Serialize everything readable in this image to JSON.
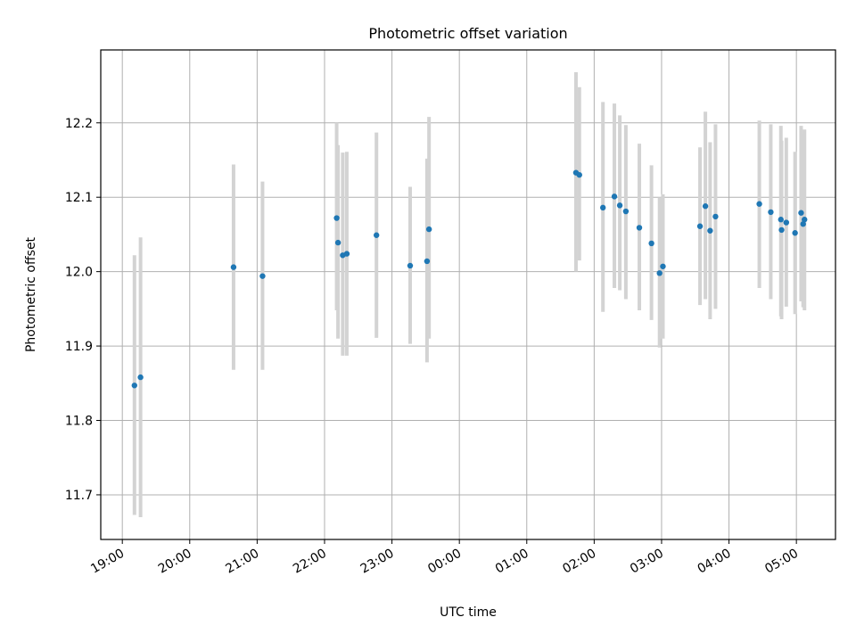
{
  "chart_data": {
    "type": "scatter",
    "title": "Photometric offset variation",
    "xlabel": "UTC time",
    "ylabel": "Photometric offset",
    "x_unit": "hours",
    "x_ticks": [
      {
        "value": 19,
        "label": "19:00"
      },
      {
        "value": 20,
        "label": "20:00"
      },
      {
        "value": 21,
        "label": "21:00"
      },
      {
        "value": 22,
        "label": "22:00"
      },
      {
        "value": 23,
        "label": "23:00"
      },
      {
        "value": 24,
        "label": "00:00"
      },
      {
        "value": 25,
        "label": "01:00"
      },
      {
        "value": 26,
        "label": "02:00"
      },
      {
        "value": 27,
        "label": "03:00"
      },
      {
        "value": 28,
        "label": "04:00"
      },
      {
        "value": 29,
        "label": "05:00"
      }
    ],
    "y_ticks": [
      {
        "value": 11.7,
        "label": "11.7"
      },
      {
        "value": 11.8,
        "label": "11.8"
      },
      {
        "value": 11.9,
        "label": "11.9"
      },
      {
        "value": 12.0,
        "label": "12.0"
      },
      {
        "value": 12.1,
        "label": "12.1"
      },
      {
        "value": 12.2,
        "label": "12.2"
      }
    ],
    "xlim": [
      18.68,
      29.58
    ],
    "ylim": [
      11.64,
      12.298
    ],
    "grid": true,
    "marker_color": "#1f77b4",
    "errorbar_color": "#d3d3d3",
    "points": [
      {
        "t": 19.18,
        "y": 11.847,
        "lo": 11.673,
        "hi": 12.022
      },
      {
        "t": 19.27,
        "y": 11.858,
        "lo": 11.67,
        "hi": 12.046
      },
      {
        "t": 20.65,
        "y": 12.006,
        "lo": 11.868,
        "hi": 12.144
      },
      {
        "t": 21.08,
        "y": 11.994,
        "lo": 11.868,
        "hi": 12.121
      },
      {
        "t": 22.18,
        "y": 12.072,
        "lo": 11.948,
        "hi": 12.2
      },
      {
        "t": 22.2,
        "y": 12.039,
        "lo": 11.91,
        "hi": 12.17
      },
      {
        "t": 22.27,
        "y": 12.022,
        "lo": 11.887,
        "hi": 12.16
      },
      {
        "t": 22.33,
        "y": 12.024,
        "lo": 11.887,
        "hi": 12.161
      },
      {
        "t": 22.77,
        "y": 12.049,
        "lo": 11.911,
        "hi": 12.187
      },
      {
        "t": 23.27,
        "y": 12.008,
        "lo": 11.903,
        "hi": 12.114
      },
      {
        "t": 23.52,
        "y": 12.014,
        "lo": 11.878,
        "hi": 12.152
      },
      {
        "t": 23.55,
        "y": 12.057,
        "lo": 11.91,
        "hi": 12.208
      },
      {
        "t": 25.73,
        "y": 12.133,
        "lo": 12.0,
        "hi": 12.268
      },
      {
        "t": 25.78,
        "y": 12.13,
        "lo": 12.015,
        "hi": 12.248
      },
      {
        "t": 26.13,
        "y": 12.086,
        "lo": 11.946,
        "hi": 12.228
      },
      {
        "t": 26.3,
        "y": 12.101,
        "lo": 11.978,
        "hi": 12.226
      },
      {
        "t": 26.38,
        "y": 12.089,
        "lo": 11.975,
        "hi": 12.21
      },
      {
        "t": 26.47,
        "y": 12.081,
        "lo": 11.963,
        "hi": 12.197
      },
      {
        "t": 26.67,
        "y": 12.059,
        "lo": 11.948,
        "hi": 12.172
      },
      {
        "t": 26.85,
        "y": 12.038,
        "lo": 11.935,
        "hi": 12.143
      },
      {
        "t": 26.97,
        "y": 11.998,
        "lo": 11.898,
        "hi": 12.1
      },
      {
        "t": 27.02,
        "y": 12.007,
        "lo": 11.91,
        "hi": 12.104
      },
      {
        "t": 27.57,
        "y": 12.061,
        "lo": 11.955,
        "hi": 12.167
      },
      {
        "t": 27.65,
        "y": 12.088,
        "lo": 11.963,
        "hi": 12.215
      },
      {
        "t": 27.72,
        "y": 12.055,
        "lo": 11.936,
        "hi": 12.174
      },
      {
        "t": 27.8,
        "y": 12.074,
        "lo": 11.95,
        "hi": 12.198
      },
      {
        "t": 28.45,
        "y": 12.091,
        "lo": 11.978,
        "hi": 12.203
      },
      {
        "t": 28.62,
        "y": 12.08,
        "lo": 11.963,
        "hi": 12.198
      },
      {
        "t": 28.77,
        "y": 12.07,
        "lo": 11.94,
        "hi": 12.196
      },
      {
        "t": 28.78,
        "y": 12.056,
        "lo": 11.936,
        "hi": 12.176
      },
      {
        "t": 28.85,
        "y": 12.066,
        "lo": 11.953,
        "hi": 12.18
      },
      {
        "t": 28.98,
        "y": 12.052,
        "lo": 11.943,
        "hi": 12.161
      },
      {
        "t": 29.07,
        "y": 12.079,
        "lo": 11.96,
        "hi": 12.196
      },
      {
        "t": 29.1,
        "y": 12.064,
        "lo": 11.952,
        "hi": 12.185
      },
      {
        "t": 29.12,
        "y": 12.07,
        "lo": 11.948,
        "hi": 12.191
      }
    ]
  }
}
